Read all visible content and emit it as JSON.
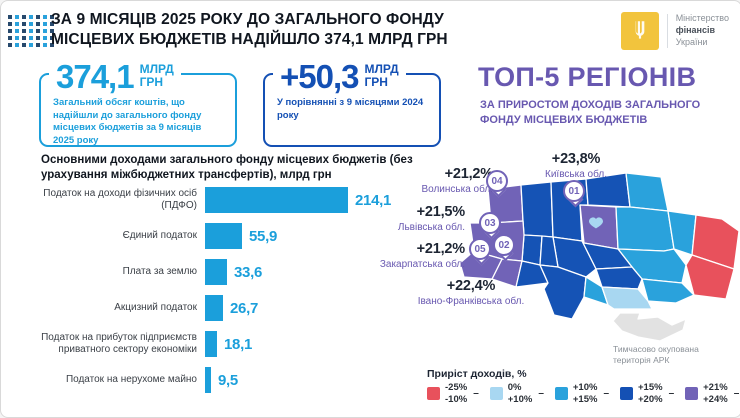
{
  "header": {
    "title_lines": [
      "ЗА 9 МІСЯЦІВ 2025 РОКУ ДО ЗАГАЛЬНОГО ФОНДУ",
      "МІСЦЕВИХ БЮДЖЕТІВ НАДІЙШЛО 374,1 МЛРД ГРН"
    ],
    "ministry": {
      "line1": "Міністерство",
      "line2": "фінансів",
      "line3": "України"
    }
  },
  "stats": [
    {
      "value": "374,1",
      "unit_line1": "МЛРД",
      "unit_line2": "ГРН",
      "desc": "Загальний обсяг коштів, що надійшли до загального фонду місцевих бюджетів за 9 місяців 2025 року"
    },
    {
      "value": "+50,3",
      "unit_line1": "МЛРД",
      "unit_line2": "ГРН",
      "desc": "У порівнянні з 9 місяцями 2024 року"
    }
  ],
  "chart_data": {
    "type": "bar",
    "orientation": "horizontal",
    "title": "Основними доходами загального фонду місцевих бюджетів (без урахування міжбюджетних трансфертів), млрд грн",
    "categories": [
      "Податок на доходи фізичних осіб (ПДФО)",
      "Єдиний податок",
      "Плата за землю",
      "Акцизний податок",
      "Податок на прибуток підприємств приватного сектору економіки",
      "Податок на нерухоме майно"
    ],
    "values": [
      214.1,
      55.9,
      33.6,
      26.7,
      18.1,
      9.5
    ],
    "value_labels": [
      "214,1",
      "55,9",
      "33,6",
      "26,7",
      "18,1",
      "9,5"
    ],
    "unit": "млрд грн",
    "xlim": [
      0,
      220
    ],
    "bar_color": "#1B9FDB",
    "grid": false
  },
  "top5": {
    "title": "ТОП-5 РЕГІОНІВ",
    "subtitle_lines": [
      "ЗА ПРИРОСТОМ ДОХОДІВ ЗАГАЛЬНОГО",
      "ФОНДУ МІСЦЕВИХ БЮДЖЕТІВ"
    ],
    "regions": [
      {
        "rank": "01",
        "pct": "+23,8%",
        "name": "Київська обл."
      },
      {
        "rank": "02",
        "pct": "+22,4%",
        "name": "Івано-Франківська обл."
      },
      {
        "rank": "03",
        "pct": "+21,5%",
        "name": "Львівська обл."
      },
      {
        "rank": "04",
        "pct": "+21,2%",
        "name": "Волинська обл."
      },
      {
        "rank": "05",
        "pct": "+21,2%",
        "name": "Закарпатська обл."
      }
    ]
  },
  "map": {
    "crimea_note": [
      "Тимчасово окупована",
      "територія АРК"
    ],
    "legend": {
      "title": "Приріст доходів, %",
      "items": [
        {
          "range": [
            "-25%",
            "-10%"
          ],
          "color": "#E8515C"
        },
        {
          "range": [
            "0%",
            "+10%"
          ],
          "color": "#A8D7F1"
        },
        {
          "range": [
            "+10%",
            "+15%"
          ],
          "color": "#2AA2DC"
        },
        {
          "range": [
            "+15%",
            "+20%"
          ],
          "color": "#1450B4"
        },
        {
          "range": [
            "+21%",
            "+24%"
          ],
          "color": "#7163B7"
        }
      ]
    }
  },
  "colors": {
    "navy": "#10161F",
    "blue": "#1B9FDB",
    "darkblue": "#1450B4",
    "purple": "#6858B0",
    "map_purple": "#7163B7",
    "map_dark": "#1553B5",
    "map_mid": "#2AA2DC",
    "map_light": "#A8D7F1",
    "map_red": "#E8515C",
    "map_grey": "#E2E2E2",
    "logo_yellow": "#F2C43D",
    "dot_dark": "#27496D",
    "dot_light": "#2AA2DC"
  }
}
